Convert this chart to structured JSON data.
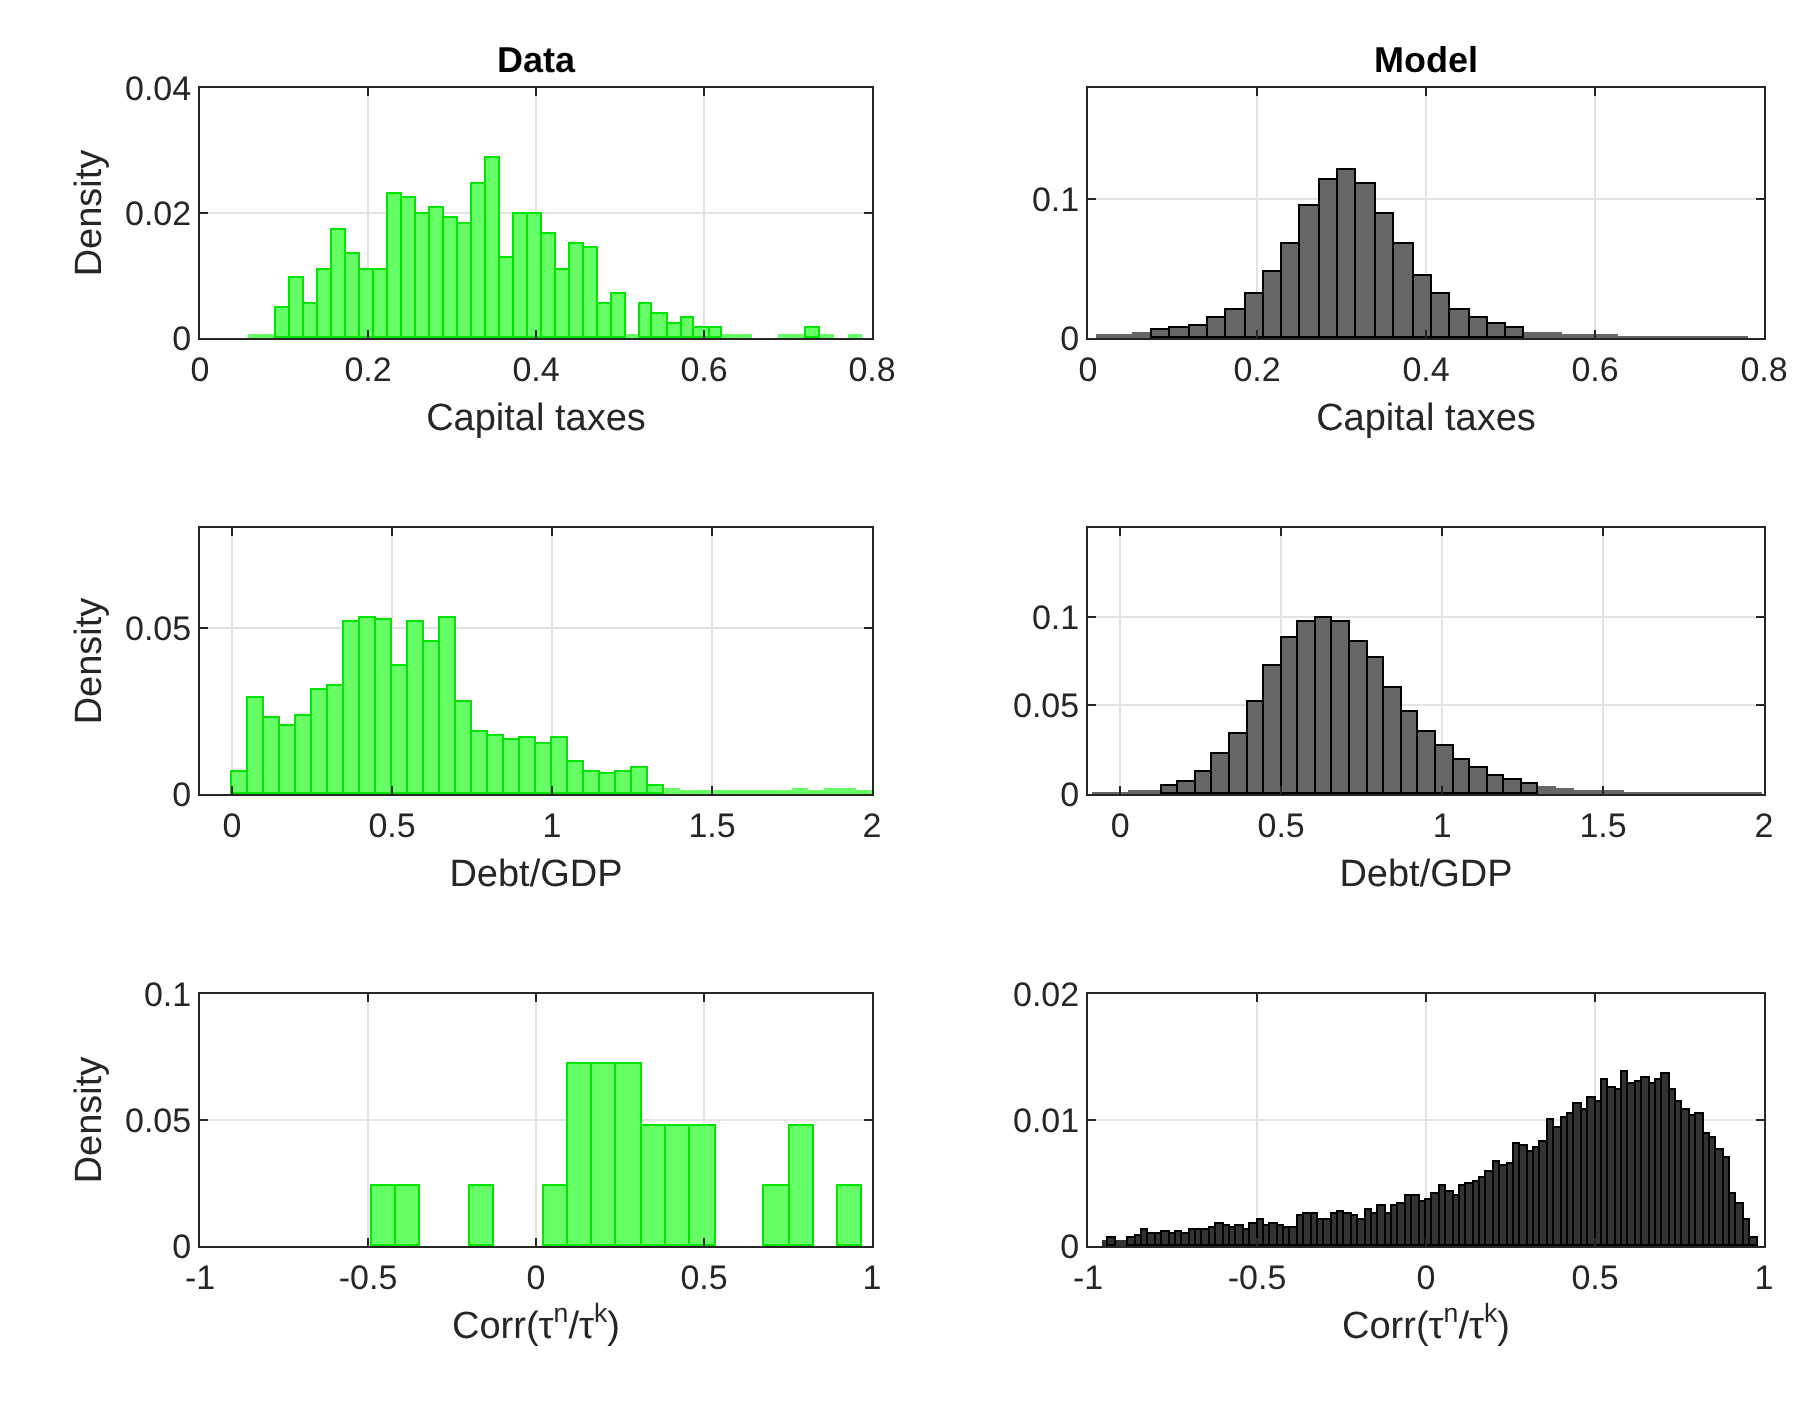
{
  "chart_data": [
    {
      "type": "histogram",
      "title": "Data",
      "xlabel": "Capital taxes",
      "ylabel": "Density",
      "color": "#66ff66",
      "grid": true,
      "xlim": [
        0,
        0.8
      ],
      "xticks": [
        0,
        0.2,
        0.4,
        0.6,
        0.8
      ],
      "ylim": [
        0,
        0.04
      ],
      "yticks": [
        0,
        0.02,
        0.04
      ],
      "bins": [
        0.058,
        0.075,
        0.091,
        0.108,
        0.124,
        0.141,
        0.158,
        0.174,
        0.191,
        0.207,
        0.224,
        0.241,
        0.257,
        0.274,
        0.29,
        0.307,
        0.324,
        0.34,
        0.357,
        0.373,
        0.39,
        0.407,
        0.423,
        0.44,
        0.456,
        0.473,
        0.49,
        0.506,
        0.523,
        0.539,
        0.556,
        0.573,
        0.589,
        0.606,
        0.622,
        0.639,
        0.656,
        0.689,
        0.705,
        0.722,
        0.739,
        0.755,
        0.772,
        0.788
      ],
      "values": [
        0.0006,
        0.0006,
        0.0047,
        0.0095,
        0.0055,
        0.011,
        0.0174,
        0.0135,
        0.011,
        0.011,
        0.0231,
        0.0224,
        0.0199,
        0.0207,
        0.0191,
        0.0182,
        0.0247,
        0.0288,
        0.0127,
        0.0199,
        0.0199,
        0.0167,
        0.011,
        0.0151,
        0.0143,
        0.0055,
        0.0071,
        0.0006,
        0.0055,
        0.0039,
        0.0022,
        0.0031,
        0.0015,
        0.0015,
        0.0006,
        0.0006,
        0,
        0.0006,
        0.0006,
        0.0015,
        0.0006,
        0,
        0.0006
      ]
    },
    {
      "type": "histogram",
      "title": "Model",
      "xlabel": "Capital taxes",
      "color": "#666666",
      "grid": true,
      "xlim": [
        0,
        0.8
      ],
      "xticks": [
        0,
        0.2,
        0.4,
        0.6,
        0.8
      ],
      "ylim": [
        0,
        0.18
      ],
      "yticks": [
        0,
        0.1
      ],
      "bins": [
        0.009,
        0.031,
        0.053,
        0.075,
        0.097,
        0.12,
        0.142,
        0.164,
        0.186,
        0.208,
        0.23,
        0.252,
        0.274,
        0.296,
        0.318,
        0.341,
        0.363,
        0.385,
        0.407,
        0.429,
        0.451,
        0.473,
        0.495,
        0.517,
        0.539,
        0.562,
        0.584,
        0.606,
        0.628,
        0.65,
        0.672,
        0.694,
        0.716,
        0.738,
        0.76,
        0.782
      ],
      "values": [
        0.002,
        0.003,
        0.004,
        0.006,
        0.007,
        0.009,
        0.014,
        0.02,
        0.031,
        0.047,
        0.068,
        0.095,
        0.114,
        0.121,
        0.111,
        0.089,
        0.067,
        0.045,
        0.031,
        0.02,
        0.015,
        0.01,
        0.007,
        0.005,
        0.004,
        0.003,
        0.002,
        0.002,
        0.001,
        0.001,
        0.001,
        0.001,
        0.001,
        0.001,
        0.0005
      ]
    },
    {
      "type": "histogram",
      "xlabel": "Debt/GDP",
      "ylabel": "Density",
      "color": "#66ff66",
      "grid": true,
      "xlim": [
        -0.1,
        2
      ],
      "xticks": [
        0,
        0.5,
        1,
        1.5,
        2
      ],
      "ylim": [
        0,
        0.08
      ],
      "yticks": [
        0,
        0.05
      ],
      "bins": [
        0,
        0.05,
        0.1,
        0.15,
        0.2,
        0.25,
        0.3,
        0.35,
        0.4,
        0.45,
        0.5,
        0.55,
        0.6,
        0.65,
        0.7,
        0.75,
        0.8,
        0.85,
        0.9,
        0.95,
        1,
        1.05,
        1.1,
        1.15,
        1.2,
        1.25,
        1.3,
        1.35,
        1.4,
        1.45,
        1.5,
        1.55,
        1.6,
        1.65,
        1.7,
        1.75,
        1.8,
        1.85,
        1.9,
        1.95,
        2
      ],
      "values": [
        0.0065,
        0.0287,
        0.023,
        0.0205,
        0.0236,
        0.031,
        0.0325,
        0.0515,
        0.0532,
        0.0523,
        0.0382,
        0.0515,
        0.0458,
        0.053,
        0.0276,
        0.0184,
        0.0175,
        0.016,
        0.0167,
        0.0152,
        0.0167,
        0.0097,
        0.0065,
        0.0059,
        0.0065,
        0.008,
        0.0027,
        0.0017,
        0.0008,
        0.0008,
        0.0008,
        0.0008,
        0.0008,
        0.0008,
        0.0008,
        0.0017,
        0.0008,
        0.0017,
        0.0017,
        0.0008
      ]
    },
    {
      "type": "histogram",
      "xlabel": "Debt/GDP",
      "color": "#666666",
      "grid": true,
      "xlim": [
        -0.1,
        2
      ],
      "xticks": [
        0,
        0.5,
        1,
        1.5,
        2
      ],
      "ylim": [
        0,
        0.15
      ],
      "yticks": [
        0,
        0.05,
        0.1
      ],
      "bins": [
        -0.085,
        -0.032,
        0.022,
        0.075,
        0.128,
        0.182,
        0.235,
        0.288,
        0.341,
        0.395,
        0.448,
        0.501,
        0.555,
        0.608,
        0.661,
        0.715,
        0.768,
        0.821,
        0.874,
        0.928,
        0.981,
        1.034,
        1.088,
        1.141,
        1.194,
        1.248,
        1.301,
        1.354,
        1.407,
        1.461,
        1.514,
        1.567,
        1.621,
        1.674,
        1.727,
        1.781,
        1.834,
        1.887,
        1.94,
        1.994
      ],
      "values": [
        0.0004,
        0.0008,
        0.0016,
        0.0028,
        0.0048,
        0.0071,
        0.0123,
        0.0222,
        0.0337,
        0.0516,
        0.0722,
        0.0881,
        0.0968,
        0.0992,
        0.0968,
        0.0861,
        0.0762,
        0.0603,
        0.0468,
        0.0349,
        0.0266,
        0.0194,
        0.0147,
        0.0107,
        0.0075,
        0.0056,
        0.0044,
        0.0032,
        0.002,
        0.0016,
        0.0012,
        0.0008,
        0.0006,
        0.0005,
        0.0004,
        0.0004,
        0.0003,
        0.0003,
        0.0003
      ]
    },
    {
      "type": "histogram",
      "xlabel": "Corr(τ$^{n}$/τ$^{k}$)",
      "ylabel": "Density",
      "color": "#66ff66",
      "grid": true,
      "xlim": [
        -1,
        1
      ],
      "xticks": [
        -1,
        -0.5,
        0,
        0.5,
        1
      ],
      "ylim": [
        0,
        0.1
      ],
      "yticks": [
        0,
        0.05,
        0.1
      ],
      "bins": [
        -0.491,
        -0.418,
        -0.345,
        -0.198,
        -0.125,
        0.021,
        0.095,
        0.168,
        0.241,
        0.314,
        0.387,
        0.461,
        0.534,
        0.68,
        0.753,
        0.827,
        0.9,
        0.973
      ],
      "values": [
        0.024,
        0.024,
        0,
        0.024,
        0,
        0.024,
        0.072,
        0.072,
        0.072,
        0.048,
        0.048,
        0.048,
        0,
        0.024,
        0.048,
        0,
        0.024
      ]
    },
    {
      "type": "histogram",
      "xlabel": "Corr(τ$^{n}$/τ$^{k}$)",
      "color": "#333333",
      "grid": true,
      "xlim": [
        -1,
        1
      ],
      "xticks": [
        -1,
        -0.5,
        0,
        0.5,
        1
      ],
      "ylim": [
        0,
        0.02
      ],
      "yticks": [
        0,
        0.01,
        0.02
      ],
      "bins": [
        -0.96,
        -0.94,
        -0.92,
        -0.9,
        -0.88,
        -0.86,
        -0.84,
        -0.82,
        -0.8,
        -0.78,
        -0.76,
        -0.74,
        -0.72,
        -0.7,
        -0.68,
        -0.66,
        -0.64,
        -0.62,
        -0.6,
        -0.58,
        -0.56,
        -0.54,
        -0.52,
        -0.5,
        -0.48,
        -0.46,
        -0.44,
        -0.42,
        -0.4,
        -0.38,
        -0.36,
        -0.34,
        -0.32,
        -0.3,
        -0.28,
        -0.26,
        -0.24,
        -0.22,
        -0.2,
        -0.18,
        -0.16,
        -0.14,
        -0.12,
        -0.1,
        -0.08,
        -0.06,
        -0.04,
        -0.02,
        0,
        0.02,
        0.04,
        0.06,
        0.08,
        0.1,
        0.12,
        0.14,
        0.16,
        0.18,
        0.2,
        0.22,
        0.24,
        0.26,
        0.28,
        0.3,
        0.32,
        0.34,
        0.36,
        0.38,
        0.4,
        0.42,
        0.44,
        0.46,
        0.48,
        0.5,
        0.52,
        0.54,
        0.56,
        0.58,
        0.6,
        0.62,
        0.64,
        0.66,
        0.68,
        0.7,
        0.72,
        0.74,
        0.76,
        0.78,
        0.8,
        0.82,
        0.84,
        0.86,
        0.88,
        0.9,
        0.92,
        0.94,
        0.96,
        0.98
      ],
      "values": [
        0.0005,
        0.0006,
        0.0005,
        0.0005,
        0.0007,
        0.0008,
        0.0012,
        0.001,
        0.0009,
        0.0011,
        0.0009,
        0.0011,
        0.0009,
        0.0012,
        0.0012,
        0.0013,
        0.0015,
        0.0018,
        0.0016,
        0.0014,
        0.0016,
        0.0013,
        0.0017,
        0.0021,
        0.0016,
        0.0018,
        0.0016,
        0.0014,
        0.0015,
        0.0024,
        0.0026,
        0.0025,
        0.0021,
        0.0021,
        0.0025,
        0.0027,
        0.0026,
        0.0024,
        0.0021,
        0.0029,
        0.0025,
        0.0032,
        0.0026,
        0.0032,
        0.0034,
        0.0039,
        0.0039,
        0.0035,
        0.0037,
        0.0042,
        0.0047,
        0.0043,
        0.0039,
        0.0047,
        0.0049,
        0.0051,
        0.0054,
        0.0058,
        0.0066,
        0.0064,
        0.0065,
        0.0081,
        0.0079,
        0.0074,
        0.0078,
        0.0083,
        0.01,
        0.0093,
        0.0102,
        0.0105,
        0.0112,
        0.0108,
        0.0117,
        0.0115,
        0.0132,
        0.0126,
        0.0124,
        0.0138,
        0.0128,
        0.013,
        0.0133,
        0.0128,
        0.0132,
        0.0136,
        0.0124,
        0.0115,
        0.0108,
        0.0103,
        0.0104,
        0.0089,
        0.0085,
        0.0076,
        0.007,
        0.0042,
        0.0033,
        0.002,
        0.0006
      ]
    }
  ]
}
